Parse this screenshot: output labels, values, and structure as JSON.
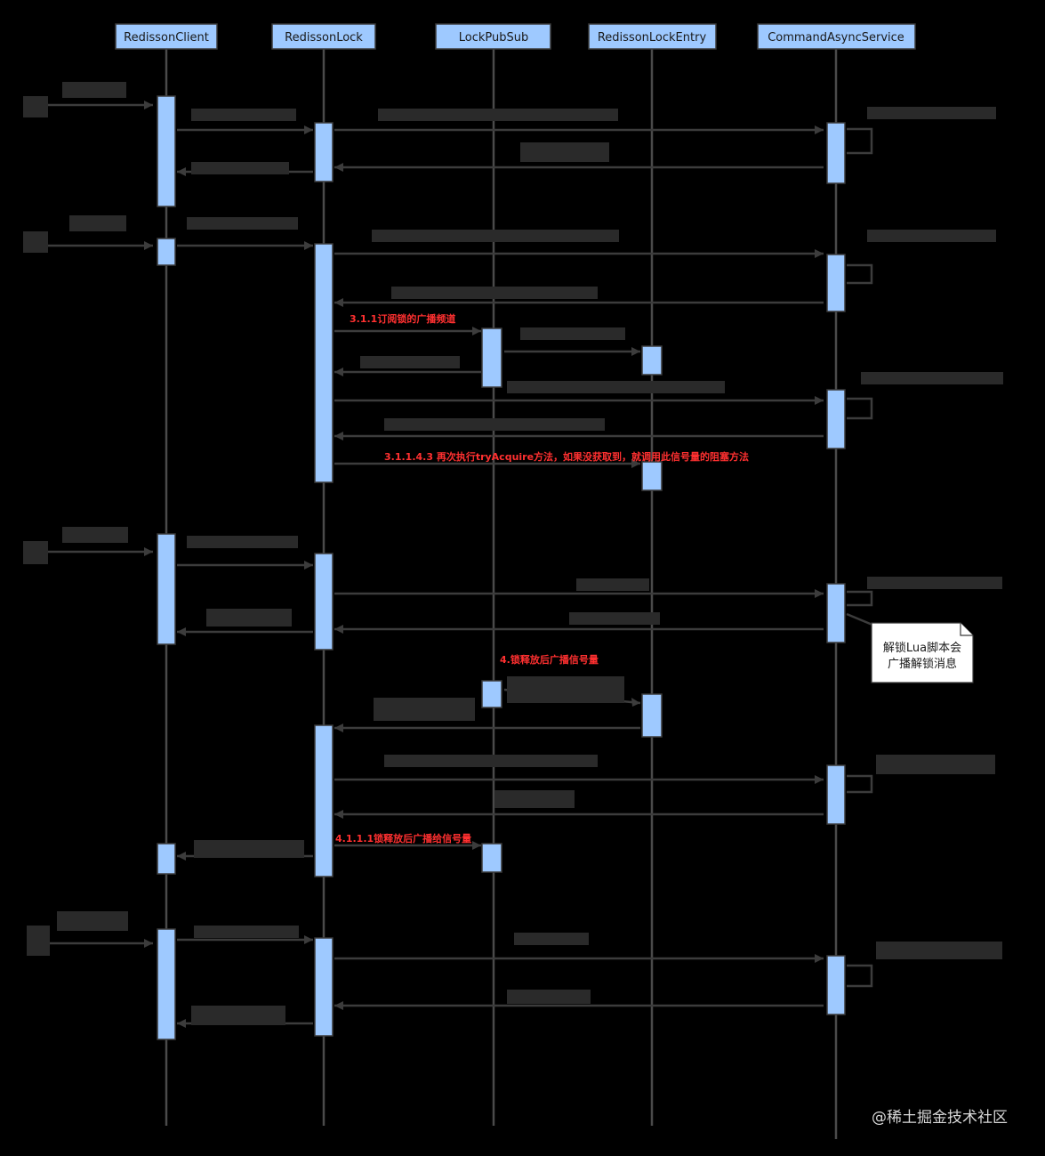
{
  "diagram": {
    "type": "sequence",
    "participants": [
      "RedissonClient",
      "RedissonLock",
      "LockPubSub",
      "RedissonLockEntry",
      "CommandAsyncService"
    ],
    "red_labels": [
      "3.1.1订阅锁的广播频道",
      "3.1.1.4.3 再次执行tryAcquire方法，如果没获取到，就调用此信号量的阻塞方法",
      "4.锁释放后广播信号量",
      "4.1.1.1锁释放后广播给信号量"
    ],
    "note": {
      "line1": "解锁Lua脚本会",
      "line2": "广播解锁消息"
    },
    "watermark": "@稀土掘金技术社区"
  }
}
